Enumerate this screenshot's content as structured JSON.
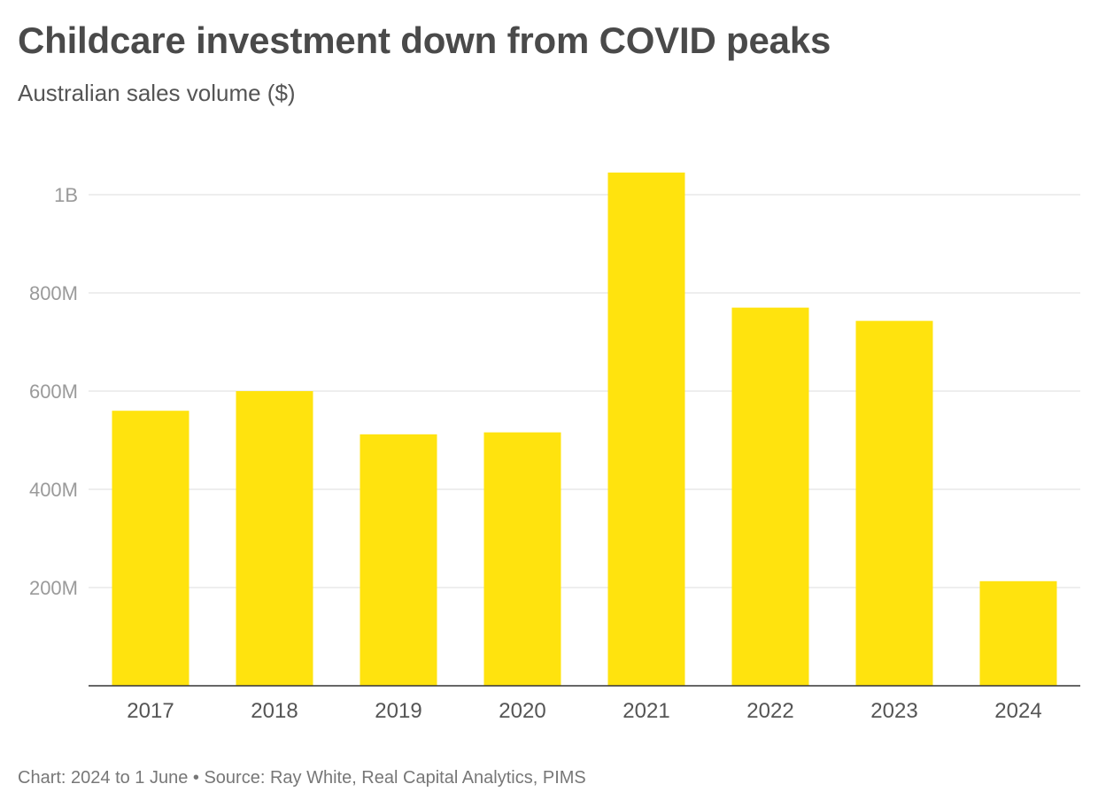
{
  "chart_data": {
    "type": "bar",
    "title": "Childcare investment down from COVID peaks",
    "subtitle": "Australian sales volume ($)",
    "categories": [
      "2017",
      "2018",
      "2019",
      "2020",
      "2021",
      "2022",
      "2023",
      "2024"
    ],
    "values": [
      560000000,
      600000000,
      512000000,
      516000000,
      1045000000,
      770000000,
      743000000,
      213000000
    ],
    "ylim": [
      0,
      1000000000
    ],
    "y_ticks": [
      {
        "value": 200000000,
        "label": "200M"
      },
      {
        "value": 400000000,
        "label": "400M"
      },
      {
        "value": 600000000,
        "label": "600M"
      },
      {
        "value": 800000000,
        "label": "800M"
      },
      {
        "value": 1000000000,
        "label": "1B"
      }
    ],
    "grid": true,
    "bar_color": "#ffe30e",
    "footer": "Chart: 2024 to 1 June • Source: Ray White, Real Capital Analytics, PIMS"
  }
}
